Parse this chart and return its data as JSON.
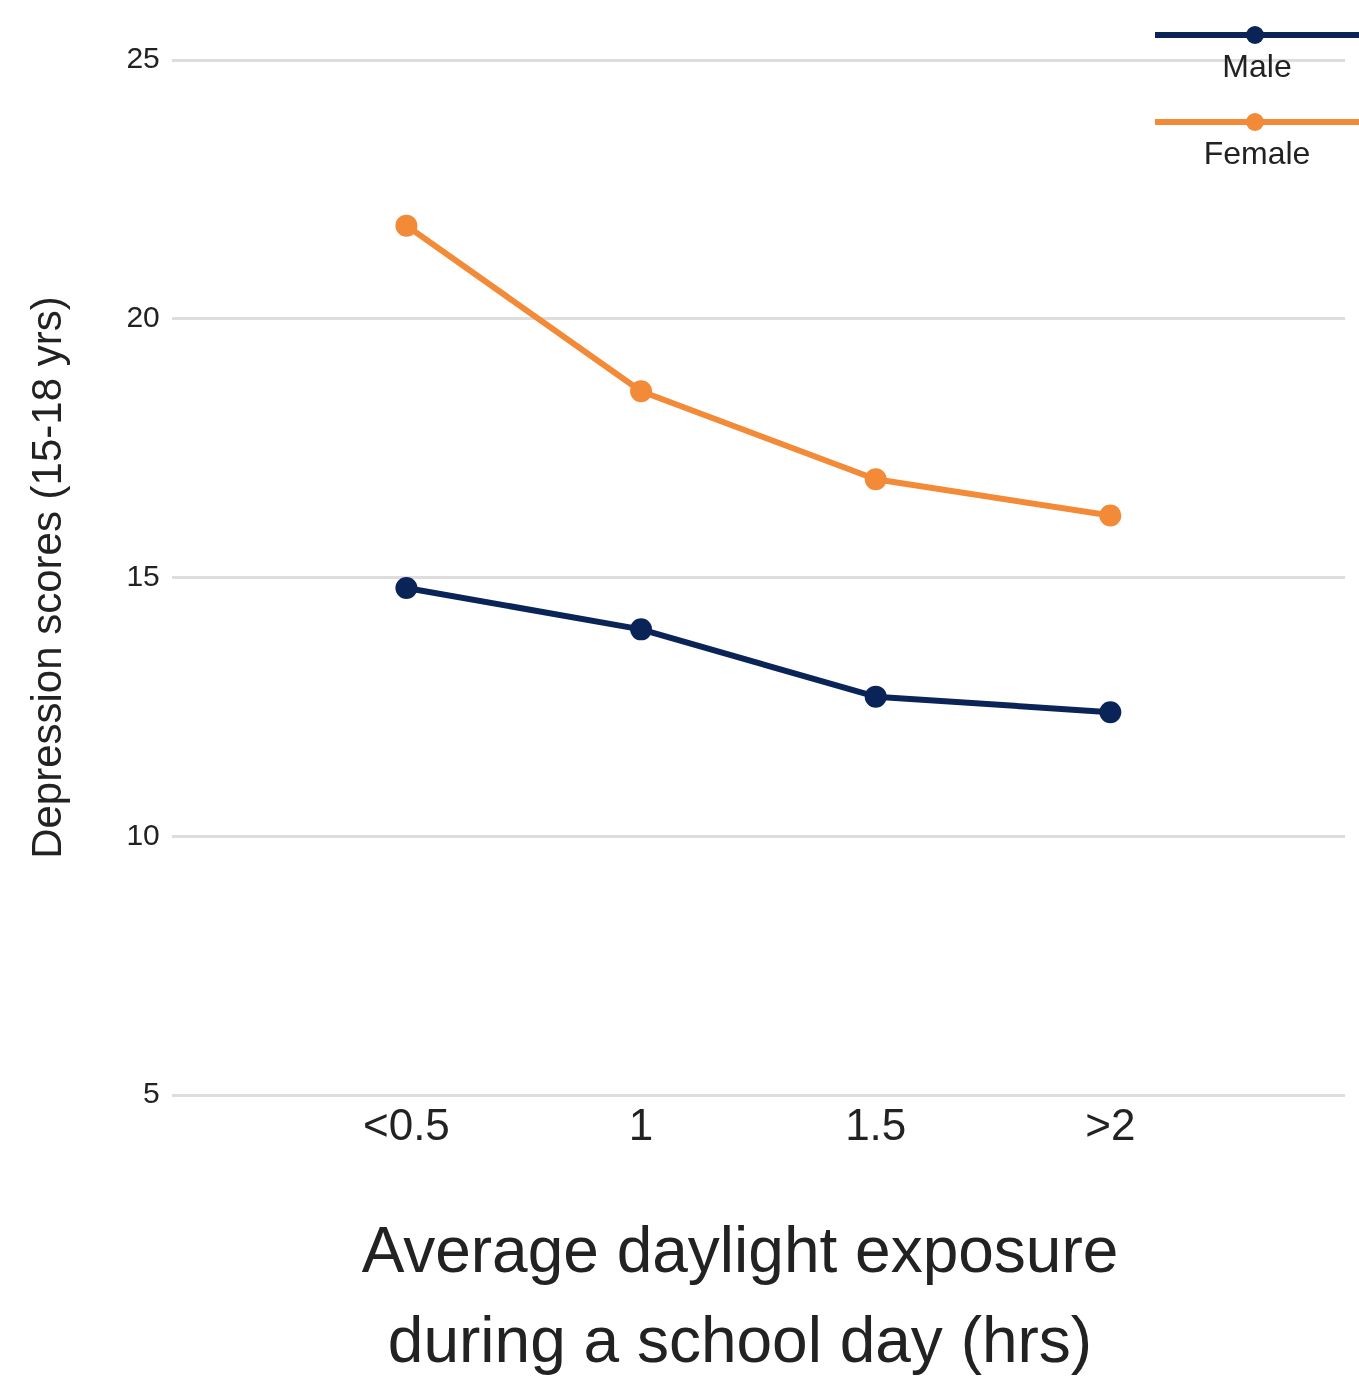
{
  "chart_data": {
    "type": "line",
    "xlabel": "Average daylight exposure during a school day (hrs)",
    "ylabel": "Depression scores (15-18 yrs)",
    "categories": [
      "<0.5",
      "1",
      "1.5",
      ">2"
    ],
    "series": [
      {
        "name": "Male",
        "color": "#0a2458",
        "values": [
          14.8,
          14.0,
          12.7,
          12.4
        ]
      },
      {
        "name": "Female",
        "color": "#f28a38",
        "values": [
          21.8,
          18.6,
          16.9,
          16.2
        ]
      }
    ],
    "ylim": [
      5,
      25
    ],
    "yticks": [
      5,
      10,
      15,
      20,
      25
    ],
    "grid": "y",
    "legend": "top right",
    "marker": "circle",
    "line_style": "solid"
  }
}
